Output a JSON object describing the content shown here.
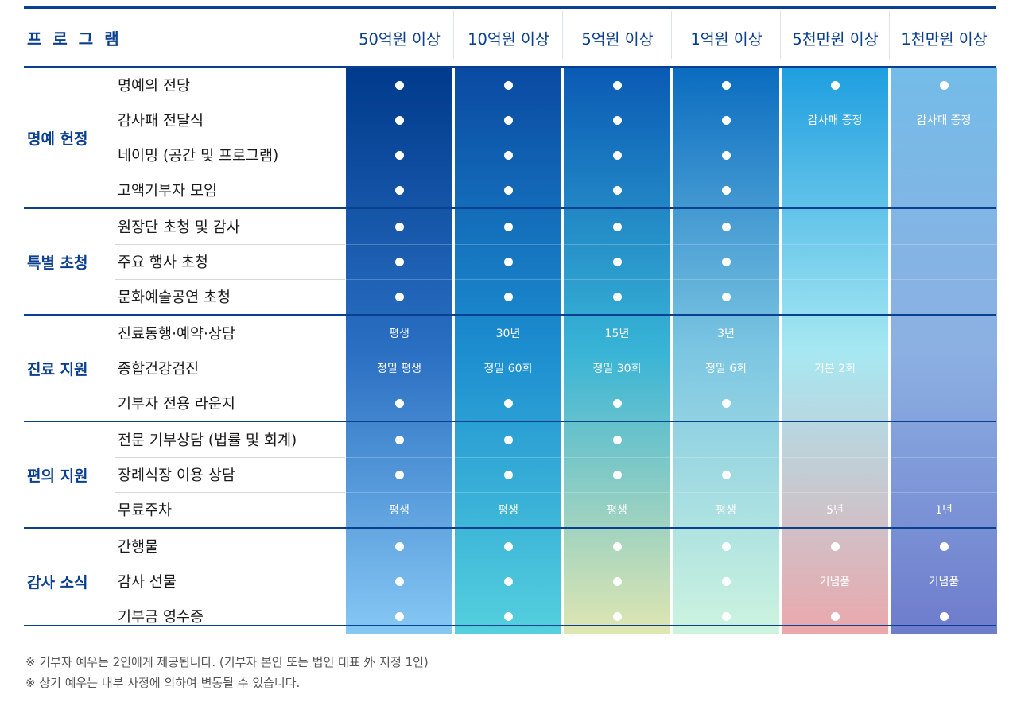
{
  "header": {
    "program": "프로그램",
    "tiers": [
      "50억원 이상",
      "10억원 이상",
      "5억원 이상",
      "1억원 이상",
      "5천만원 이상",
      "1천만원 이상"
    ]
  },
  "groups": [
    {
      "label": "명예 헌정",
      "items": [
        {
          "label": "명예의 전당",
          "cells": [
            "dot",
            "dot",
            "dot",
            "dot",
            "dot",
            "dot"
          ]
        },
        {
          "label": "감사패 전달식",
          "cells": [
            "dot",
            "dot",
            "dot",
            "dot",
            "감사패 증정",
            "감사패 증정"
          ]
        },
        {
          "label": "네이밍 (공간 및 프로그램)",
          "cells": [
            "dot",
            "dot",
            "dot",
            "dot",
            "",
            ""
          ]
        },
        {
          "label": "고액기부자 모임",
          "cells": [
            "dot",
            "dot",
            "dot",
            "dot",
            "",
            ""
          ]
        }
      ]
    },
    {
      "label": "특별 초청",
      "items": [
        {
          "label": "원장단 초청 및 감사",
          "cells": [
            "dot",
            "dot",
            "dot",
            "dot",
            "",
            ""
          ]
        },
        {
          "label": "주요 행사 초청",
          "cells": [
            "dot",
            "dot",
            "dot",
            "dot",
            "",
            ""
          ]
        },
        {
          "label": "문화예술공연 초청",
          "cells": [
            "dot",
            "dot",
            "dot",
            "dot",
            "",
            ""
          ]
        }
      ]
    },
    {
      "label": "진료 지원",
      "items": [
        {
          "label": "진료동행·예약·상담",
          "cells": [
            "평생",
            "30년",
            "15년",
            "3년",
            "",
            ""
          ]
        },
        {
          "label": "종합건강검진",
          "cells": [
            "정밀 평생",
            "정밀 60회",
            "정밀 30회",
            "정밀 6회",
            "기본 2회",
            ""
          ]
        },
        {
          "label": "기부자 전용 라운지",
          "cells": [
            "dot",
            "dot",
            "dot",
            "dot",
            "",
            ""
          ]
        }
      ]
    },
    {
      "label": "편의 지원",
      "items": [
        {
          "label": "전문 기부상담 (법률 및 회계)",
          "cells": [
            "dot",
            "dot",
            "dot",
            "",
            "",
            ""
          ]
        },
        {
          "label": "장례식장 이용 상담",
          "cells": [
            "dot",
            "dot",
            "dot",
            "dot",
            "",
            ""
          ]
        },
        {
          "label": "무료주차",
          "cells": [
            "평생",
            "평생",
            "평생",
            "평생",
            "5년",
            "1년"
          ]
        }
      ]
    },
    {
      "label": "감사 소식",
      "items": [
        {
          "label": "간행물",
          "cells": [
            "dot",
            "dot",
            "dot",
            "dot",
            "dot",
            "dot"
          ]
        },
        {
          "label": "감사 선물",
          "cells": [
            "dot",
            "dot",
            "dot",
            "dot",
            "기념품",
            "기념품"
          ]
        },
        {
          "label": "기부금 영수증",
          "cells": [
            "dot",
            "dot",
            "dot",
            "dot",
            "dot",
            "dot"
          ]
        }
      ]
    }
  ],
  "notes": [
    "※ 기부자 예우는 2인에게 제공됩니다. (기부자 본인 또는 법인 대표 外 지정 1인)",
    "※ 상기 예우는 내부 사정에 의하여 변동될 수 있습니다."
  ],
  "colors": {
    "accent": "#0b3f8f",
    "columns": [
      [
        "#003a8c",
        "#2a6fc2",
        "#86c8f4"
      ],
      [
        "#0a4aa2",
        "#1c8ed0",
        "#54d0de"
      ],
      [
        "#0a5ab4",
        "#38b4d6",
        "#e0e6b2"
      ],
      [
        "#0a6cc0",
        "#7cc6e2",
        "#cdf4e0"
      ],
      [
        "#1e9ee0",
        "#a6e8f2",
        "#eaa8ac"
      ],
      [
        "#74bce8",
        "#8cb0e2",
        "#6e7ccc"
      ]
    ]
  }
}
